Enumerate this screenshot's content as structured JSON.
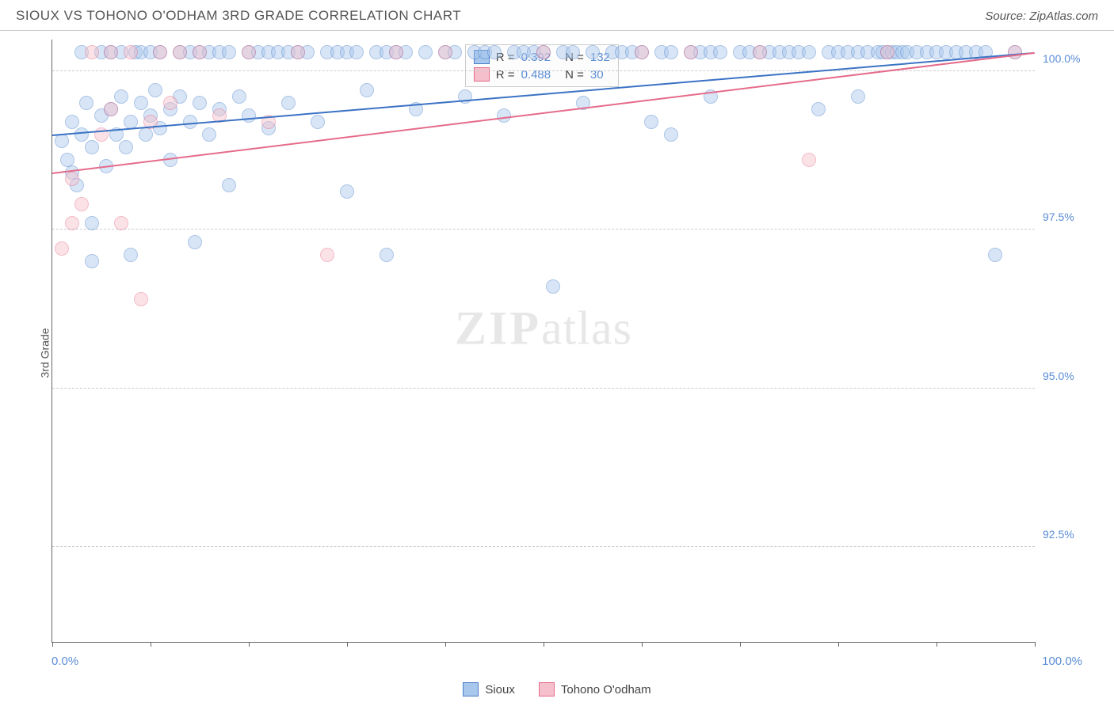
{
  "header": {
    "title": "SIOUX VS TOHONO O'ODHAM 3RD GRADE CORRELATION CHART",
    "source_prefix": "Source: ",
    "source_name": "ZipAtlas.com"
  },
  "chart": {
    "type": "scatter",
    "ylabel": "3rd Grade",
    "background_color": "#ffffff",
    "grid_color": "#cccccc",
    "axis_color": "#666666",
    "label_color": "#555555",
    "tick_label_color": "#5b8dd6",
    "tick_fontsize": 14,
    "title_fontsize": 17,
    "xlim": [
      0,
      100
    ],
    "ylim": [
      91,
      100.5
    ],
    "xticks": [
      0,
      10,
      20,
      30,
      40,
      50,
      60,
      70,
      80,
      90,
      100
    ],
    "xtick_labels_ends": {
      "min": "0.0%",
      "max": "100.0%"
    },
    "yticks": [
      92.5,
      95.0,
      97.5,
      100.0
    ],
    "ytick_labels": [
      "92.5%",
      "95.0%",
      "97.5%",
      "100.0%"
    ],
    "marker_radius": 9,
    "marker_stroke_width": 1,
    "marker_opacity": 0.45,
    "trend_width": 2,
    "series": [
      {
        "name": "Sioux",
        "fill": "#a7c7ec",
        "stroke": "#4a7fc9",
        "trend_color": "#3b72c4",
        "R": "0.392",
        "N": "132",
        "trend": {
          "x1": 0,
          "y1": 99.0,
          "x2": 100,
          "y2": 100.3
        },
        "points": [
          [
            1,
            98.9
          ],
          [
            1.5,
            98.6
          ],
          [
            2,
            98.4
          ],
          [
            2,
            99.2
          ],
          [
            2.5,
            98.2
          ],
          [
            3,
            99.0
          ],
          [
            3,
            100.3
          ],
          [
            3.5,
            99.5
          ],
          [
            4,
            98.8
          ],
          [
            4,
            97.6
          ],
          [
            4,
            97.0
          ],
          [
            5,
            99.3
          ],
          [
            5,
            100.3
          ],
          [
            5.5,
            98.5
          ],
          [
            6,
            99.4
          ],
          [
            6,
            100.3
          ],
          [
            6.5,
            99.0
          ],
          [
            7,
            99.6
          ],
          [
            7,
            100.3
          ],
          [
            7.5,
            98.8
          ],
          [
            8,
            99.2
          ],
          [
            8,
            97.1
          ],
          [
            8.5,
            100.3
          ],
          [
            9,
            99.5
          ],
          [
            9,
            100.3
          ],
          [
            9.5,
            99.0
          ],
          [
            10,
            99.3
          ],
          [
            10,
            100.3
          ],
          [
            10.5,
            99.7
          ],
          [
            11,
            99.1
          ],
          [
            11,
            100.3
          ],
          [
            12,
            99.4
          ],
          [
            12,
            98.6
          ],
          [
            13,
            100.3
          ],
          [
            13,
            99.6
          ],
          [
            14,
            100.3
          ],
          [
            14,
            99.2
          ],
          [
            14.5,
            97.3
          ],
          [
            15,
            100.3
          ],
          [
            15,
            99.5
          ],
          [
            16,
            100.3
          ],
          [
            16,
            99.0
          ],
          [
            17,
            100.3
          ],
          [
            17,
            99.4
          ],
          [
            18,
            100.3
          ],
          [
            18,
            98.2
          ],
          [
            19,
            99.6
          ],
          [
            20,
            100.3
          ],
          [
            20,
            99.3
          ],
          [
            21,
            100.3
          ],
          [
            22,
            100.3
          ],
          [
            22,
            99.1
          ],
          [
            23,
            100.3
          ],
          [
            24,
            100.3
          ],
          [
            24,
            99.5
          ],
          [
            25,
            100.3
          ],
          [
            26,
            100.3
          ],
          [
            27,
            99.2
          ],
          [
            28,
            100.3
          ],
          [
            29,
            100.3
          ],
          [
            30,
            100.3
          ],
          [
            30,
            98.1
          ],
          [
            31,
            100.3
          ],
          [
            32,
            99.7
          ],
          [
            33,
            100.3
          ],
          [
            34,
            100.3
          ],
          [
            34,
            97.1
          ],
          [
            35,
            100.3
          ],
          [
            36,
            100.3
          ],
          [
            37,
            99.4
          ],
          [
            38,
            100.3
          ],
          [
            40,
            100.3
          ],
          [
            41,
            100.3
          ],
          [
            42,
            99.6
          ],
          [
            43,
            100.3
          ],
          [
            44,
            100.3
          ],
          [
            45,
            100.3
          ],
          [
            46,
            99.3
          ],
          [
            47,
            100.3
          ],
          [
            48,
            100.3
          ],
          [
            49,
            100.3
          ],
          [
            50,
            100.3
          ],
          [
            51,
            96.6
          ],
          [
            52,
            100.3
          ],
          [
            53,
            100.3
          ],
          [
            54,
            99.5
          ],
          [
            55,
            100.3
          ],
          [
            57,
            100.3
          ],
          [
            58,
            100.3
          ],
          [
            59,
            100.3
          ],
          [
            60,
            100.3
          ],
          [
            61,
            99.2
          ],
          [
            62,
            100.3
          ],
          [
            63,
            100.3
          ],
          [
            63,
            99.0
          ],
          [
            65,
            100.3
          ],
          [
            66,
            100.3
          ],
          [
            67,
            100.3
          ],
          [
            67,
            99.6
          ],
          [
            68,
            100.3
          ],
          [
            70,
            100.3
          ],
          [
            71,
            100.3
          ],
          [
            72,
            100.3
          ],
          [
            73,
            100.3
          ],
          [
            74,
            100.3
          ],
          [
            75,
            100.3
          ],
          [
            76,
            100.3
          ],
          [
            77,
            100.3
          ],
          [
            78,
            99.4
          ],
          [
            79,
            100.3
          ],
          [
            80,
            100.3
          ],
          [
            81,
            100.3
          ],
          [
            82,
            100.3
          ],
          [
            82,
            99.6
          ],
          [
            83,
            100.3
          ],
          [
            84,
            100.3
          ],
          [
            84.5,
            100.3
          ],
          [
            85,
            100.3
          ],
          [
            85.5,
            100.3
          ],
          [
            86,
            100.3
          ],
          [
            86.5,
            100.3
          ],
          [
            87,
            100.3
          ],
          [
            88,
            100.3
          ],
          [
            89,
            100.3
          ],
          [
            90,
            100.3
          ],
          [
            91,
            100.3
          ],
          [
            92,
            100.3
          ],
          [
            93,
            100.3
          ],
          [
            94,
            100.3
          ],
          [
            95,
            100.3
          ],
          [
            96,
            97.1
          ],
          [
            98,
            100.3
          ]
        ]
      },
      {
        "name": "Tohono O'odham",
        "fill": "#f5c0cc",
        "stroke": "#e56b8a",
        "trend_color": "#e56b8a",
        "R": "0.488",
        "N": "30",
        "trend": {
          "x1": 0,
          "y1": 98.4,
          "x2": 100,
          "y2": 100.3
        },
        "points": [
          [
            1,
            97.2
          ],
          [
            2,
            97.6
          ],
          [
            2,
            98.3
          ],
          [
            3,
            97.9
          ],
          [
            4,
            100.3
          ],
          [
            5,
            99.0
          ],
          [
            6,
            99.4
          ],
          [
            6,
            100.3
          ],
          [
            7,
            97.6
          ],
          [
            8,
            100.3
          ],
          [
            9,
            96.4
          ],
          [
            10,
            99.2
          ],
          [
            11,
            100.3
          ],
          [
            12,
            99.5
          ],
          [
            13,
            100.3
          ],
          [
            15,
            100.3
          ],
          [
            17,
            99.3
          ],
          [
            20,
            100.3
          ],
          [
            22,
            99.2
          ],
          [
            25,
            100.3
          ],
          [
            28,
            97.1
          ],
          [
            35,
            100.3
          ],
          [
            40,
            100.3
          ],
          [
            50,
            100.3
          ],
          [
            60,
            100.3
          ],
          [
            65,
            100.3
          ],
          [
            72,
            100.3
          ],
          [
            77,
            98.6
          ],
          [
            85,
            100.3
          ],
          [
            98,
            100.3
          ]
        ]
      }
    ],
    "regression_box": {
      "rows": [
        {
          "swatch_fill": "#a7c7ec",
          "swatch_stroke": "#4a7fc9",
          "r_label": "R =",
          "r_val": "0.392",
          "n_label": "N =",
          "n_val": "132"
        },
        {
          "swatch_fill": "#f5c0cc",
          "swatch_stroke": "#e56b8a",
          "r_label": "R =",
          "r_val": "0.488",
          "n_label": "N =",
          "n_val": " 30"
        }
      ]
    },
    "watermark": {
      "bold": "ZIP",
      "rest": "atlas"
    },
    "legend": [
      {
        "swatch_fill": "#a7c7ec",
        "swatch_stroke": "#4a7fc9",
        "label": "Sioux"
      },
      {
        "swatch_fill": "#f5c0cc",
        "swatch_stroke": "#e56b8a",
        "label": "Tohono O'odham"
      }
    ]
  }
}
